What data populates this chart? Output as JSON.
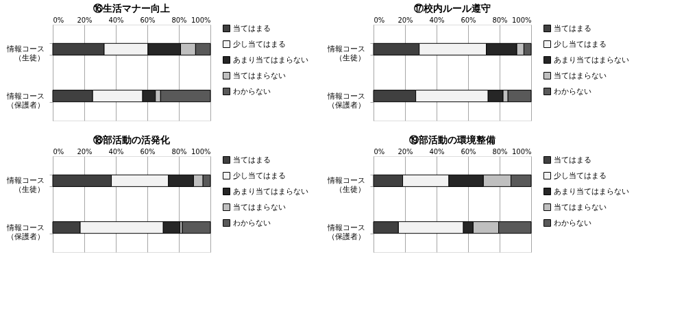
{
  "chart_data": [
    {
      "type": "bar",
      "title": "⑯生活マナー向上",
      "orientation": "horizontal",
      "stacked": true,
      "categories": [
        "情報コース（生徒）",
        "情報コース（保護者）"
      ],
      "xlim": [
        0,
        100
      ],
      "xticks": [
        {
          "value": 0,
          "label": "0%"
        },
        {
          "value": 20,
          "label": "20%"
        },
        {
          "value": 40,
          "label": "40%"
        },
        {
          "value": 60,
          "label": "60%"
        },
        {
          "value": 80,
          "label": "80%"
        },
        {
          "value": 100,
          "label": "100%"
        }
      ],
      "grid": "x",
      "legend": "right",
      "series": [
        {
          "name": "当てはまる",
          "color": "#404040",
          "values": [
            32.6,
            25.3
          ]
        },
        {
          "name": "少し当てはまる",
          "color": "#f2f2f2",
          "values": [
            27.8,
            31.7
          ]
        },
        {
          "name": "あまり当てはまらない",
          "color": "#262626",
          "values": [
            20.7,
            8.1
          ]
        },
        {
          "name": "当てはまらない",
          "color": "#bfbfbf",
          "values": [
            9.5,
            3.3
          ]
        },
        {
          "name": "わからない",
          "color": "#595959",
          "values": [
            9.4,
            31.6
          ]
        }
      ]
    },
    {
      "type": "bar",
      "title": "⑰校内ルール遵守",
      "orientation": "horizontal",
      "stacked": true,
      "categories": [
        "情報コース（生徒）",
        "情報コース（保護者）"
      ],
      "xlim": [
        0,
        100
      ],
      "xticks": [
        {
          "value": 0,
          "label": "0%"
        },
        {
          "value": 20,
          "label": "20%"
        },
        {
          "value": 40,
          "label": "40%"
        },
        {
          "value": 60,
          "label": "60%"
        },
        {
          "value": 80,
          "label": "80%"
        },
        {
          "value": 100,
          "label": "100%"
        }
      ],
      "grid": "x",
      "legend": "right",
      "series": [
        {
          "name": "当てはまる",
          "color": "#404040",
          "values": [
            29.0,
            26.8
          ]
        },
        {
          "name": "少し当てはまる",
          "color": "#f2f2f2",
          "values": [
            42.6,
            45.9
          ]
        },
        {
          "name": "あまり当てはまらない",
          "color": "#262626",
          "values": [
            19.3,
            9.5
          ]
        },
        {
          "name": "当てはまらない",
          "color": "#bfbfbf",
          "values": [
            4.5,
            3.1
          ]
        },
        {
          "name": "わからない",
          "color": "#595959",
          "values": [
            4.6,
            14.7
          ]
        }
      ]
    },
    {
      "type": "bar",
      "title": "⑱部活動の活発化",
      "orientation": "horizontal",
      "stacked": true,
      "categories": [
        "情報コース（生徒）",
        "情報コース（保護者）"
      ],
      "xlim": [
        0,
        100
      ],
      "xticks": [
        {
          "value": 0,
          "label": "0%"
        },
        {
          "value": 20,
          "label": "20%"
        },
        {
          "value": 40,
          "label": "40%"
        },
        {
          "value": 60,
          "label": "60%"
        },
        {
          "value": 80,
          "label": "80%"
        },
        {
          "value": 100,
          "label": "100%"
        }
      ],
      "grid": "x",
      "legend": "right",
      "series": [
        {
          "name": "当てはまる",
          "color": "#404040",
          "values": [
            37.2,
            17.4
          ]
        },
        {
          "name": "少し当てはまる",
          "color": "#f2f2f2",
          "values": [
            36.2,
            52.7
          ]
        },
        {
          "name": "あまり当てはまらない",
          "color": "#262626",
          "values": [
            15.9,
            10.6
          ]
        },
        {
          "name": "当てはまらない",
          "color": "#bfbfbf",
          "values": [
            6.0,
            1.5
          ]
        },
        {
          "name": "わからない",
          "color": "#595959",
          "values": [
            4.7,
            17.8
          ]
        }
      ]
    },
    {
      "type": "bar",
      "title": "⑲部活動の環境整備",
      "orientation": "horizontal",
      "stacked": true,
      "categories": [
        "情報コース（生徒）",
        "情報コース（保護者）"
      ],
      "xlim": [
        0,
        100
      ],
      "xticks": [
        {
          "value": 0,
          "label": "0%"
        },
        {
          "value": 20,
          "label": "20%"
        },
        {
          "value": 40,
          "label": "40%"
        },
        {
          "value": 60,
          "label": "60%"
        },
        {
          "value": 80,
          "label": "80%"
        },
        {
          "value": 100,
          "label": "100%"
        }
      ],
      "grid": "x",
      "legend": "right",
      "series": [
        {
          "name": "当てはまる",
          "color": "#404040",
          "values": [
            18.5,
            15.8
          ]
        },
        {
          "name": "少し当てはまる",
          "color": "#f2f2f2",
          "values": [
            29.3,
            41.2
          ]
        },
        {
          "name": "あまり当てはまらない",
          "color": "#262626",
          "values": [
            21.9,
            6.2
          ]
        },
        {
          "name": "当てはまらない",
          "color": "#bfbfbf",
          "values": [
            17.5,
            16.2
          ]
        },
        {
          "name": "わからない",
          "color": "#595959",
          "values": [
            12.8,
            20.6
          ]
        }
      ]
    }
  ]
}
